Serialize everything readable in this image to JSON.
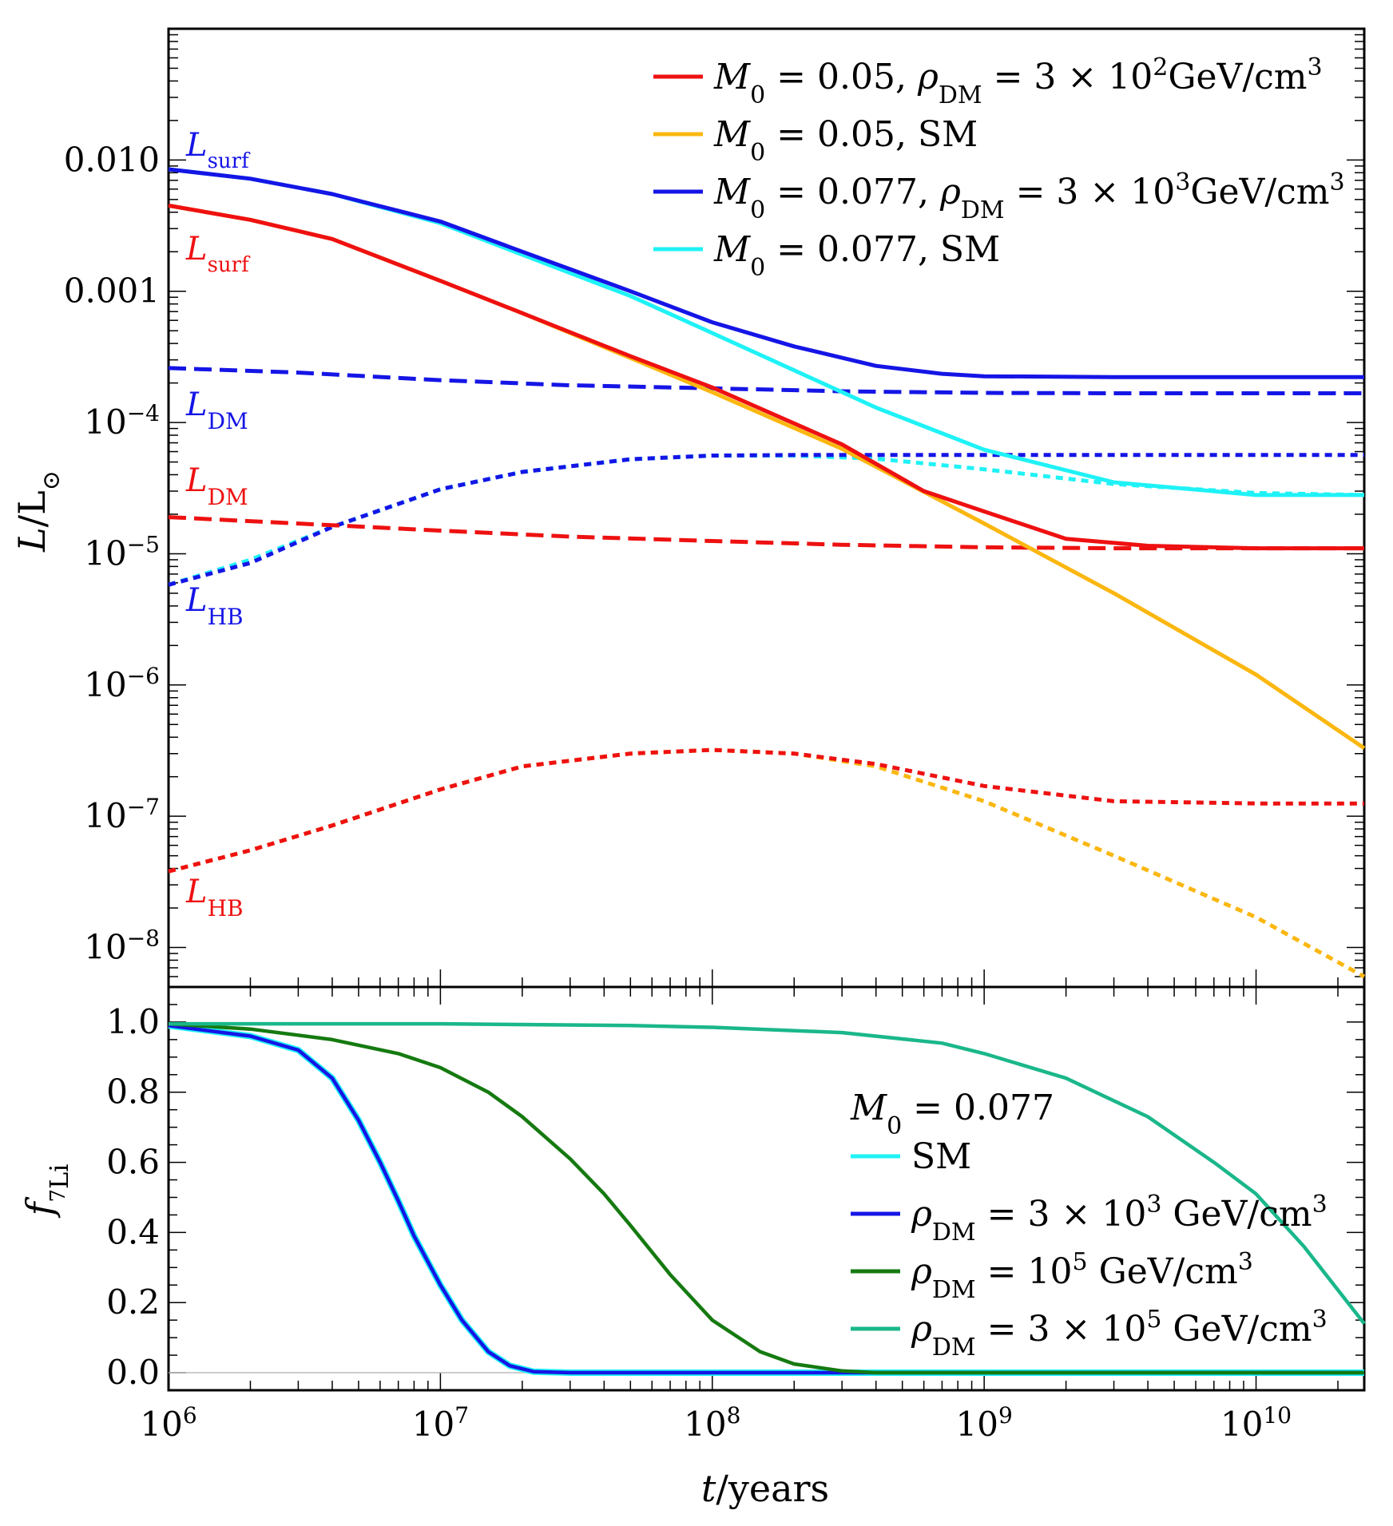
{
  "chart_data": [
    {
      "type": "line",
      "panel": "top",
      "xlabel": "",
      "ylabel": "L/L⊙",
      "xscale": "log",
      "yscale": "log",
      "xlim": [
        1000000,
        25000000000
      ],
      "ylim": [
        5e-09,
        0.1
      ],
      "y_ticks": [
        {
          "value": 0.01,
          "base": "0.010",
          "exp": ""
        },
        {
          "value": 0.001,
          "base": "0.001",
          "exp": ""
        },
        {
          "value": 0.0001,
          "base": "10",
          "exp": "−4"
        },
        {
          "value": 1e-05,
          "base": "10",
          "exp": "−5"
        },
        {
          "value": 1e-06,
          "base": "10",
          "exp": "−6"
        },
        {
          "value": 1e-07,
          "base": "10",
          "exp": "−7"
        },
        {
          "value": 1e-08,
          "base": "10",
          "exp": "−8"
        }
      ],
      "legend": {
        "placement": "top-right",
        "entries": [
          {
            "series": "red-solid",
            "color": "#ee1111",
            "label": "M₀ = 0.05, ρ_DM = 3 × 10² GeV/cm³"
          },
          {
            "series": "orange-solid",
            "color": "#fbb710",
            "label": "M₀ = 0.05, SM"
          },
          {
            "series": "blue-solid",
            "color": "#1515e6",
            "label": "M₀ = 0.077, ρ_DM = 3 × 10³ GeV/cm³"
          },
          {
            "series": "cyan-solid",
            "color": "#1ff2f6",
            "label": "M₀ = 0.077, SM"
          }
        ]
      },
      "annotations": [
        {
          "text": "L",
          "sub": "surf",
          "color": "#1515e6",
          "near": "blue solid, left"
        },
        {
          "text": "L",
          "sub": "surf",
          "color": "#ee1111",
          "near": "red solid, left"
        },
        {
          "text": "L",
          "sub": "DM",
          "color": "#1515e6",
          "near": "blue dashed, left"
        },
        {
          "text": "L",
          "sub": "DM",
          "color": "#ee1111",
          "near": "red dashed, left"
        },
        {
          "text": "L",
          "sub": "HB",
          "color": "#1515e6",
          "near": "blue dotted, left"
        },
        {
          "text": "L",
          "sub": "HB",
          "color": "#ee1111",
          "near": "red dotted, left"
        }
      ],
      "series": [
        {
          "name": "cyan-dotted",
          "color": "#1ff2f6",
          "dash": "dotted",
          "x": [
            1000000,
            2000000,
            4000000,
            10000000,
            20000000,
            50000000,
            100000000,
            200000000,
            400000000,
            1000000000,
            3000000000,
            10000000000,
            25000000000
          ],
          "y": [
            5.8e-06,
            9e-06,
            1.6e-05,
            3.1e-05,
            4.2e-05,
            5.25e-05,
            5.6e-05,
            5.6e-05,
            5.3e-05,
            4.4e-05,
            3.4e-05,
            2.9e-05,
            2.8e-05
          ]
        },
        {
          "name": "blue-dotted",
          "color": "#1515e6",
          "dash": "dotted",
          "x": [
            1000000,
            2000000,
            4000000,
            10000000,
            20000000,
            50000000,
            100000000,
            200000000,
            400000000,
            1000000000,
            3000000000,
            10000000000,
            25000000000
          ],
          "y": [
            5.8e-06,
            8.5e-06,
            1.6e-05,
            3.1e-05,
            4.2e-05,
            5.25e-05,
            5.6e-05,
            5.65e-05,
            5.65e-05,
            5.65e-05,
            5.65e-05,
            5.65e-05,
            5.65e-05
          ]
        },
        {
          "name": "orange-dotted",
          "color": "#fbb710",
          "dash": "dotted",
          "x": [
            1000000,
            2000000,
            4000000,
            10000000,
            20000000,
            50000000,
            100000000,
            200000000,
            400000000,
            1000000000,
            3000000000,
            10000000000,
            25000000000
          ],
          "y": [
            3.8e-08,
            5.5e-08,
            8.5e-08,
            1.6e-07,
            2.4e-07,
            3e-07,
            3.2e-07,
            3e-07,
            2.4e-07,
            1.3e-07,
            5e-08,
            1.7e-08,
            6e-09
          ]
        },
        {
          "name": "red-dotted",
          "color": "#ee1111",
          "dash": "dotted",
          "x": [
            1000000,
            2000000,
            4000000,
            10000000,
            20000000,
            50000000,
            100000000,
            200000000,
            400000000,
            1000000000,
            3000000000,
            10000000000,
            25000000000
          ],
          "y": [
            3.8e-08,
            5.5e-08,
            8.5e-08,
            1.6e-07,
            2.4e-07,
            3e-07,
            3.2e-07,
            3e-07,
            2.5e-07,
            1.7e-07,
            1.3e-07,
            1.25e-07,
            1.25e-07
          ]
        },
        {
          "name": "red-dashed",
          "color": "#ee1111",
          "dash": "dashed",
          "x": [
            1000000,
            3000000,
            10000000,
            30000000,
            100000000,
            300000000,
            1000000000,
            3000000000,
            10000000000,
            25000000000
          ],
          "y": [
            1.9e-05,
            1.7e-05,
            1.5e-05,
            1.35e-05,
            1.25e-05,
            1.17e-05,
            1.12e-05,
            1.1e-05,
            1.1e-05,
            1.1e-05
          ]
        },
        {
          "name": "blue-dashed",
          "color": "#1515e6",
          "dash": "dashed",
          "x": [
            1000000,
            3000000,
            10000000,
            30000000,
            100000000,
            300000000,
            1000000000,
            3000000000,
            10000000000,
            25000000000
          ],
          "y": [
            0.00026,
            0.00024,
            0.00021,
            0.000192,
            0.000182,
            0.000173,
            0.000168,
            0.000167,
            0.000167,
            0.000167
          ]
        },
        {
          "name": "orange-solid",
          "color": "#fbb710",
          "dash": "solid",
          "x": [
            1000000,
            2000000,
            4000000,
            10000000,
            20000000,
            50000000,
            100000000,
            300000000,
            1000000000,
            3000000000,
            10000000000,
            25000000000
          ],
          "y": [
            0.0045,
            0.0035,
            0.0025,
            0.0012,
            0.00068,
            0.00031,
            0.00017,
            6.3e-05,
            1.7e-05,
            5e-06,
            1.2e-06,
            3.3e-07
          ]
        },
        {
          "name": "red-solid",
          "color": "#ee1111",
          "dash": "solid",
          "x": [
            1000000,
            2000000,
            4000000,
            10000000,
            20000000,
            50000000,
            100000000,
            300000000,
            600000000,
            1000000000,
            2000000000,
            4000000000,
            10000000000,
            25000000000
          ],
          "y": [
            0.0045,
            0.0035,
            0.0025,
            0.0012,
            0.00068,
            0.00032,
            0.000185,
            6.8e-05,
            3e-05,
            2.1e-05,
            1.3e-05,
            1.15e-05,
            1.1e-05,
            1.1e-05
          ]
        },
        {
          "name": "cyan-solid",
          "color": "#1ff2f6",
          "dash": "solid",
          "x": [
            1000000,
            2000000,
            4000000,
            10000000,
            20000000,
            50000000,
            100000000,
            200000000,
            400000000,
            1000000000,
            3000000000,
            10000000000,
            25000000000
          ],
          "y": [
            0.0085,
            0.0072,
            0.0055,
            0.0033,
            0.0019,
            0.00092,
            0.00048,
            0.00025,
            0.00013,
            6.2e-05,
            3.5e-05,
            2.8e-05,
            2.8e-05
          ]
        },
        {
          "name": "blue-solid",
          "color": "#1515e6",
          "dash": "solid",
          "x": [
            1000000,
            2000000,
            4000000,
            10000000,
            20000000,
            50000000,
            100000000,
            200000000,
            400000000,
            700000000,
            1000000000,
            3000000000,
            10000000000,
            25000000000
          ],
          "y": [
            0.0085,
            0.0072,
            0.0055,
            0.0034,
            0.002,
            0.001,
            0.00058,
            0.00038,
            0.00027,
            0.000235,
            0.000225,
            0.000222,
            0.000222,
            0.000222
          ]
        }
      ]
    },
    {
      "type": "line",
      "panel": "bottom",
      "xlabel": "t/years",
      "ylabel": "f_7Li",
      "xscale": "log",
      "yscale": "linear",
      "xlim": [
        1000000,
        25000000000
      ],
      "ylim": [
        -0.05,
        1.1
      ],
      "x_ticks": [
        {
          "value": 1000000,
          "base": "10",
          "exp": "6"
        },
        {
          "value": 10000000,
          "base": "10",
          "exp": "7"
        },
        {
          "value": 100000000,
          "base": "10",
          "exp": "8"
        },
        {
          "value": 1000000000,
          "base": "10",
          "exp": "9"
        },
        {
          "value": 10000000000,
          "base": "10",
          "exp": "10"
        }
      ],
      "y_ticks": [
        "0.0",
        "0.2",
        "0.4",
        "0.6",
        "0.8",
        "1.0"
      ],
      "legend": {
        "placement": "right",
        "title": "M₀ = 0.077",
        "entries": [
          {
            "series": "cyan",
            "color": "#1ff2f6",
            "label": "SM"
          },
          {
            "series": "blue",
            "color": "#1515e6",
            "label": "ρ_DM = 3 × 10³ GeV/cm³"
          },
          {
            "series": "darkgreen",
            "color": "#157a10",
            "label": "ρ_DM = 10⁵ GeV/cm³"
          },
          {
            "series": "teal",
            "color": "#1ab78a",
            "label": "ρ_DM = 3 × 10⁵ GeV/cm³"
          }
        ]
      },
      "series": [
        {
          "name": "cyan",
          "color": "#1ff2f6",
          "x": [
            1000000,
            2000000,
            3000000,
            4000000,
            5000000,
            6000000,
            7000000,
            8000000,
            10000000,
            12000000,
            15000000,
            18000000,
            22000000,
            30000000,
            25000000000
          ],
          "y": [
            0.99,
            0.96,
            0.92,
            0.84,
            0.72,
            0.6,
            0.49,
            0.39,
            0.25,
            0.15,
            0.06,
            0.02,
            0.003,
            0.0,
            0.0
          ]
        },
        {
          "name": "blue",
          "color": "#1515e6",
          "x": [
            1000000,
            2000000,
            3000000,
            4000000,
            5000000,
            6000000,
            7000000,
            8000000,
            10000000,
            12000000,
            15000000,
            18000000,
            22000000,
            30000000,
            25000000000
          ],
          "y": [
            0.99,
            0.96,
            0.92,
            0.84,
            0.72,
            0.6,
            0.49,
            0.39,
            0.25,
            0.15,
            0.06,
            0.02,
            0.003,
            0.0,
            0.0
          ]
        },
        {
          "name": "darkgreen",
          "color": "#157a10",
          "x": [
            1000000,
            2000000,
            4000000,
            7000000,
            10000000,
            15000000,
            20000000,
            30000000,
            40000000,
            50000000,
            70000000,
            100000000,
            150000000,
            200000000,
            300000000,
            400000000,
            25000000000
          ],
          "y": [
            0.995,
            0.98,
            0.95,
            0.91,
            0.87,
            0.8,
            0.73,
            0.61,
            0.51,
            0.42,
            0.28,
            0.15,
            0.06,
            0.025,
            0.005,
            0.0,
            0.0
          ]
        },
        {
          "name": "teal",
          "color": "#1ab78a",
          "x": [
            1000000,
            10000000,
            50000000,
            100000000,
            300000000,
            700000000,
            1000000000,
            2000000000,
            4000000000,
            7000000000,
            10000000000,
            15000000000,
            25000000000
          ],
          "y": [
            0.995,
            0.995,
            0.99,
            0.985,
            0.97,
            0.94,
            0.91,
            0.84,
            0.73,
            0.6,
            0.51,
            0.36,
            0.14
          ]
        }
      ]
    }
  ]
}
